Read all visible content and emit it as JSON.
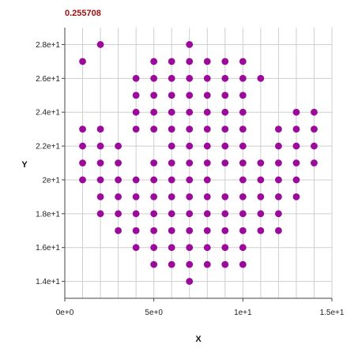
{
  "chart_data": {
    "type": "scatter",
    "title": "0.255708",
    "xlabel": "X",
    "ylabel": "Y",
    "xlim": [
      0,
      15
    ],
    "ylim": [
      13,
      29
    ],
    "grid": true,
    "x_ticks": [
      {
        "value": 0,
        "label": "0e+0"
      },
      {
        "value": 5,
        "label": "5e+0"
      },
      {
        "value": 10,
        "label": "1e+1"
      },
      {
        "value": 15,
        "label": "1.5e+1"
      }
    ],
    "y_ticks": [
      {
        "value": 14,
        "label": "1.4e+1"
      },
      {
        "value": 16,
        "label": "1.6e+1"
      },
      {
        "value": 18,
        "label": "1.8e+1"
      },
      {
        "value": 20,
        "label": "2e+1"
      },
      {
        "value": 22,
        "label": "2.2e+1"
      },
      {
        "value": 24,
        "label": "2.4e+1"
      },
      {
        "value": 26,
        "label": "2.6e+1"
      },
      {
        "value": 28,
        "label": "2.8e+1"
      }
    ],
    "marker_color": "#9b0a9b",
    "points": [
      [
        1,
        27
      ],
      [
        2,
        28
      ],
      [
        7,
        28
      ],
      [
        5,
        27
      ],
      [
        6,
        27
      ],
      [
        7,
        27
      ],
      [
        8,
        27
      ],
      [
        9,
        27
      ],
      [
        10,
        27
      ],
      [
        4,
        26
      ],
      [
        5,
        26
      ],
      [
        6,
        26
      ],
      [
        7,
        26
      ],
      [
        8,
        26
      ],
      [
        9,
        26
      ],
      [
        10,
        26
      ],
      [
        11,
        26
      ],
      [
        4,
        25
      ],
      [
        5,
        25
      ],
      [
        6,
        25
      ],
      [
        7,
        25
      ],
      [
        8,
        25
      ],
      [
        9,
        25
      ],
      [
        10,
        25
      ],
      [
        4,
        24
      ],
      [
        5,
        24
      ],
      [
        6,
        24
      ],
      [
        7,
        24
      ],
      [
        8,
        24
      ],
      [
        9,
        24
      ],
      [
        10,
        24
      ],
      [
        13,
        24
      ],
      [
        14,
        24
      ],
      [
        1,
        23
      ],
      [
        2,
        23
      ],
      [
        4,
        23
      ],
      [
        5,
        23
      ],
      [
        6,
        23
      ],
      [
        7,
        23
      ],
      [
        8,
        23
      ],
      [
        9,
        23
      ],
      [
        10,
        23
      ],
      [
        12,
        23
      ],
      [
        13,
        23
      ],
      [
        14,
        23
      ],
      [
        1,
        22
      ],
      [
        2,
        22
      ],
      [
        3,
        22
      ],
      [
        6,
        22
      ],
      [
        7,
        22
      ],
      [
        8,
        22
      ],
      [
        9,
        22
      ],
      [
        10,
        22
      ],
      [
        12,
        22
      ],
      [
        13,
        22
      ],
      [
        14,
        22
      ],
      [
        1,
        21
      ],
      [
        2,
        21
      ],
      [
        3,
        21
      ],
      [
        5,
        21
      ],
      [
        6,
        21
      ],
      [
        7,
        21
      ],
      [
        8,
        21
      ],
      [
        9,
        21
      ],
      [
        10,
        21
      ],
      [
        11,
        21
      ],
      [
        12,
        21
      ],
      [
        13,
        21
      ],
      [
        14,
        21
      ],
      [
        1,
        20
      ],
      [
        2,
        20
      ],
      [
        3,
        20
      ],
      [
        4,
        20
      ],
      [
        5,
        20
      ],
      [
        6,
        20
      ],
      [
        7,
        20
      ],
      [
        8,
        20
      ],
      [
        10,
        20
      ],
      [
        11,
        20
      ],
      [
        12,
        20
      ],
      [
        13,
        20
      ],
      [
        2,
        19
      ],
      [
        3,
        19
      ],
      [
        4,
        19
      ],
      [
        5,
        19
      ],
      [
        6,
        19
      ],
      [
        7,
        19
      ],
      [
        8,
        19
      ],
      [
        9,
        19
      ],
      [
        10,
        19
      ],
      [
        11,
        19
      ],
      [
        12,
        19
      ],
      [
        13,
        19
      ],
      [
        2,
        18
      ],
      [
        3,
        18
      ],
      [
        4,
        18
      ],
      [
        5,
        18
      ],
      [
        6,
        18
      ],
      [
        7,
        18
      ],
      [
        8,
        18
      ],
      [
        9,
        18
      ],
      [
        10,
        18
      ],
      [
        11,
        18
      ],
      [
        12,
        18
      ],
      [
        3,
        17
      ],
      [
        4,
        17
      ],
      [
        5,
        17
      ],
      [
        6,
        17
      ],
      [
        7,
        17
      ],
      [
        8,
        17
      ],
      [
        9,
        17
      ],
      [
        10,
        17
      ],
      [
        11,
        17
      ],
      [
        12,
        17
      ],
      [
        4,
        16
      ],
      [
        5,
        16
      ],
      [
        6,
        16
      ],
      [
        7,
        16
      ],
      [
        8,
        16
      ],
      [
        9,
        16
      ],
      [
        10,
        16
      ],
      [
        5,
        15
      ],
      [
        6,
        15
      ],
      [
        7,
        15
      ],
      [
        8,
        15
      ],
      [
        9,
        15
      ],
      [
        10,
        15
      ],
      [
        7,
        14
      ]
    ]
  }
}
